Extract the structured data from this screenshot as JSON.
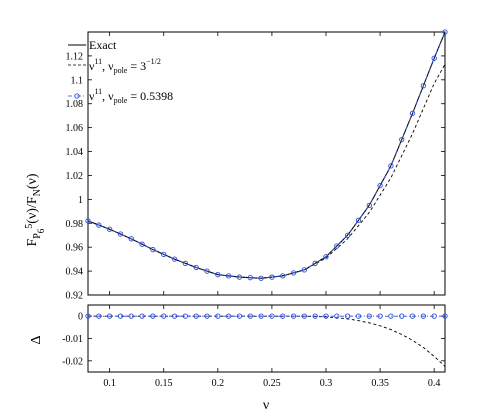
{
  "chart_data": [
    {
      "type": "line",
      "panel": "main",
      "ylabel_parts": {
        "F": "F",
        "P": "P",
        "sub6": "6",
        "sup5": "5",
        "num_arg": "(ν)/F",
        "N": "N",
        "den_arg": "(ν)"
      },
      "xlim": [
        0.08,
        0.41
      ],
      "ylim": [
        0.92,
        1.14
      ],
      "yticks": [
        "0.92",
        "0.94",
        "0.96",
        "0.98",
        "1",
        "1.02",
        "1.04",
        "1.06",
        "1.08",
        "1.1",
        "1.12"
      ],
      "ytick_values": [
        0.92,
        0.94,
        0.96,
        0.98,
        1.0,
        1.02,
        1.04,
        1.06,
        1.08,
        1.1,
        1.12
      ],
      "legend": {
        "placement": "top-left",
        "entries": [
          {
            "id": "exact",
            "text": "Exact"
          },
          {
            "id": "sqrt",
            "base": "ν",
            "sup": "11",
            "mid": ", ν",
            "sub": "pole",
            "eq": " = 3",
            "eqsup": "−1/2"
          },
          {
            "id": "fit",
            "base": "ν",
            "sup": "11",
            "mid": ", ν",
            "sub": "pole",
            "eq": " = 0.5398"
          }
        ]
      },
      "series": [
        {
          "id": "exact",
          "style": "solid",
          "color": "#000000",
          "x": [
            0.08,
            0.1,
            0.12,
            0.14,
            0.16,
            0.18,
            0.2,
            0.22,
            0.24,
            0.26,
            0.28,
            0.3,
            0.32,
            0.34,
            0.36,
            0.38,
            0.4,
            0.41
          ],
          "y": [
            0.982,
            0.975,
            0.967,
            0.958,
            0.95,
            0.943,
            0.937,
            0.935,
            0.934,
            0.936,
            0.941,
            0.952,
            0.97,
            0.995,
            1.028,
            1.072,
            1.118,
            1.14
          ]
        },
        {
          "id": "sqrt",
          "style": "dashed",
          "color": "#000000",
          "x": [
            0.08,
            0.1,
            0.12,
            0.14,
            0.16,
            0.18,
            0.2,
            0.22,
            0.24,
            0.26,
            0.28,
            0.3,
            0.32,
            0.34,
            0.36,
            0.38,
            0.4,
            0.41
          ],
          "y": [
            0.982,
            0.975,
            0.967,
            0.958,
            0.95,
            0.943,
            0.937,
            0.935,
            0.934,
            0.936,
            0.941,
            0.951,
            0.967,
            0.989,
            1.018,
            1.055,
            1.097,
            1.113
          ]
        },
        {
          "id": "fit",
          "style": "dash-dot-markers",
          "color": "#2f4fd6",
          "x": [
            0.08,
            0.1,
            0.12,
            0.14,
            0.16,
            0.18,
            0.2,
            0.22,
            0.24,
            0.26,
            0.28,
            0.3,
            0.32,
            0.34,
            0.36,
            0.38,
            0.4,
            0.41
          ],
          "y": [
            0.982,
            0.975,
            0.967,
            0.958,
            0.95,
            0.943,
            0.937,
            0.935,
            0.934,
            0.936,
            0.941,
            0.952,
            0.97,
            0.995,
            1.028,
            1.072,
            1.118,
            1.14
          ],
          "marker_every": 0.01
        }
      ]
    },
    {
      "type": "line",
      "panel": "residual",
      "ylabel": "Δ",
      "xlabel": "ν",
      "xlim": [
        0.08,
        0.41
      ],
      "ylim": [
        -0.025,
        0.005
      ],
      "xticks": [
        "0.1",
        "0.15",
        "0.2",
        "0.25",
        "0.3",
        "0.35",
        "0.4"
      ],
      "xtick_values": [
        0.1,
        0.15,
        0.2,
        0.25,
        0.3,
        0.35,
        0.4
      ],
      "yticks": [
        "0",
        "-0.01",
        "-0.02"
      ],
      "ytick_values": [
        0,
        -0.01,
        -0.02
      ],
      "series": [
        {
          "id": "sqrt",
          "style": "dashed",
          "color": "#000000",
          "x": [
            0.08,
            0.28,
            0.3,
            0.31,
            0.32,
            0.33,
            0.34,
            0.35,
            0.36,
            0.37,
            0.38,
            0.39,
            0.4,
            0.41
          ],
          "y": [
            0.0,
            0.0,
            -0.0003,
            -0.0007,
            -0.0012,
            -0.002,
            -0.003,
            -0.0043,
            -0.006,
            -0.0082,
            -0.0108,
            -0.014,
            -0.018,
            -0.0225
          ]
        },
        {
          "id": "fit",
          "style": "dash-dot-markers",
          "color": "#2f4fd6",
          "x": [
            0.08,
            0.41
          ],
          "y": [
            0.0,
            0.0
          ],
          "marker_every": 0.01
        }
      ]
    }
  ]
}
